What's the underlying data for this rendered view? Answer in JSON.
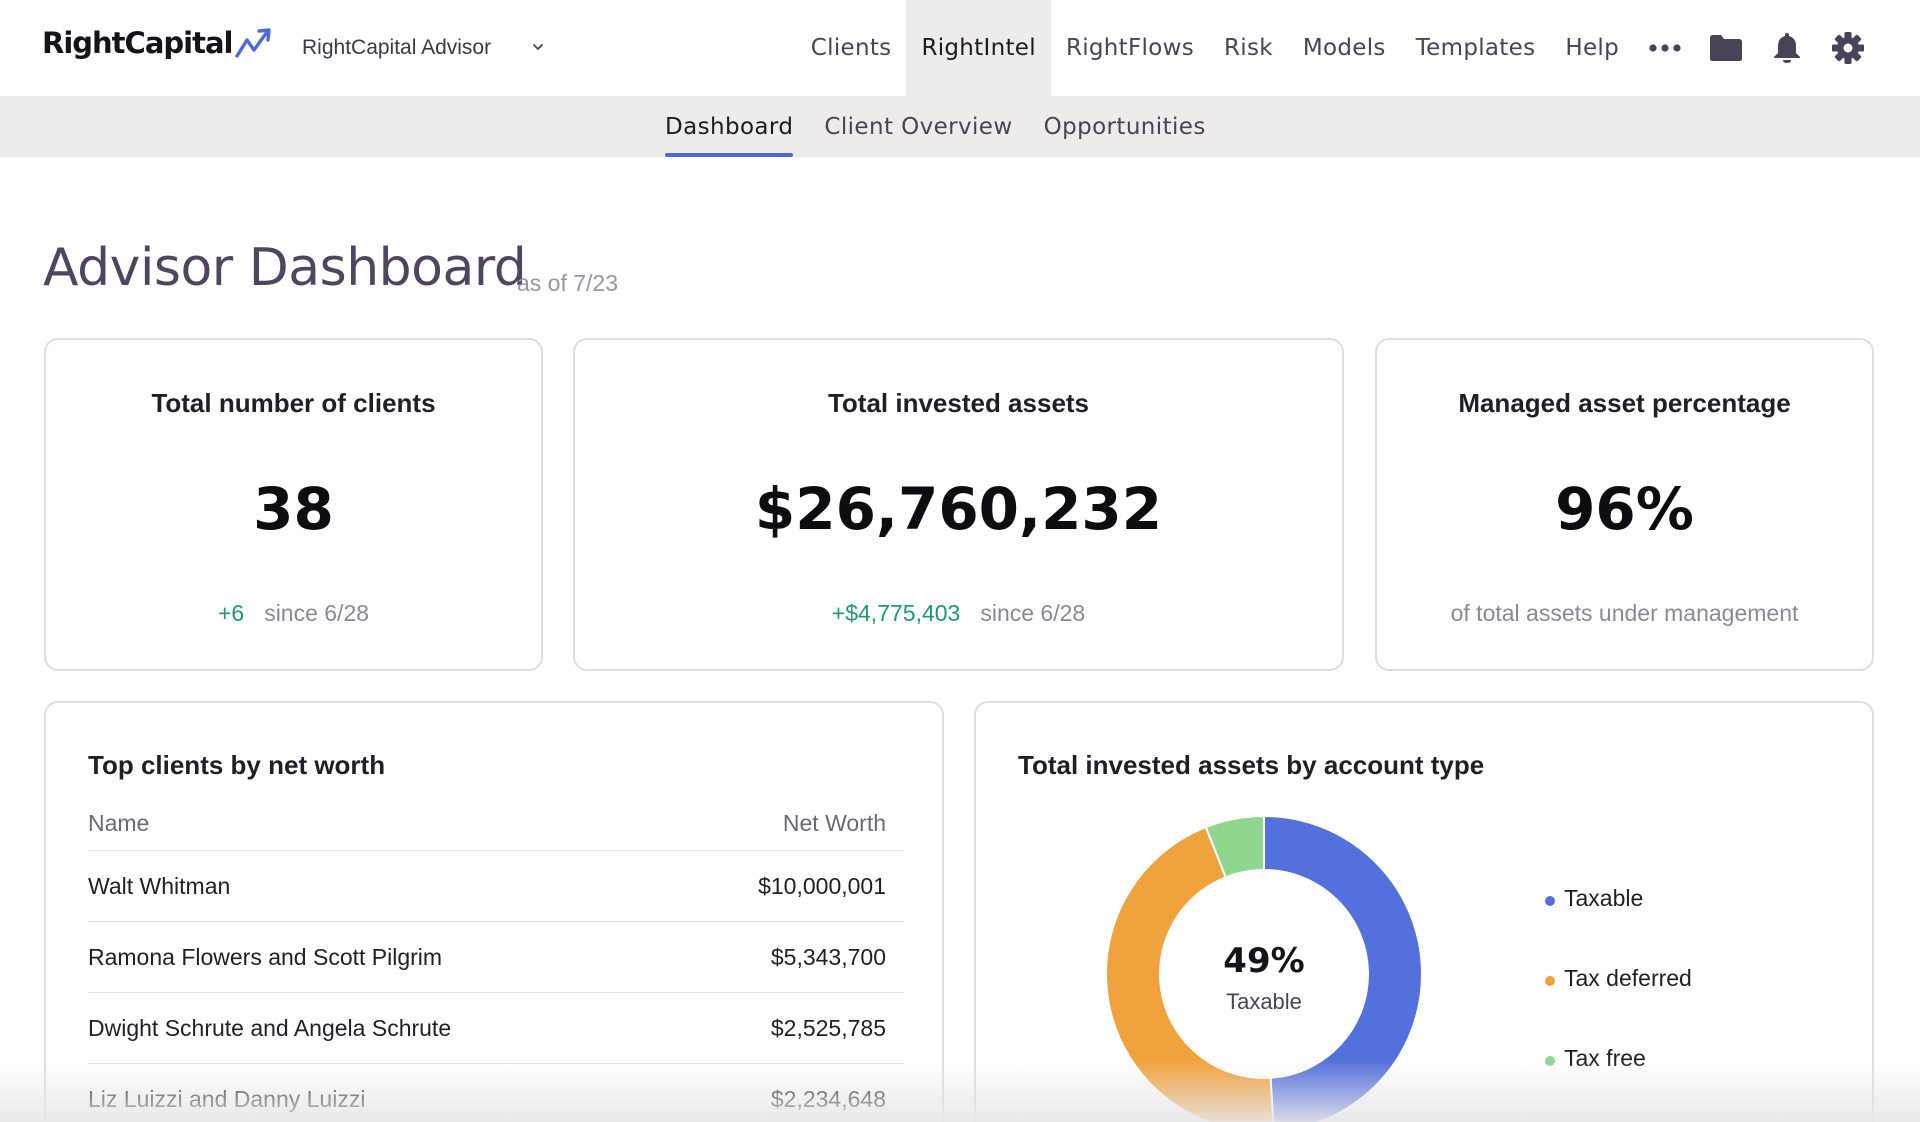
{
  "brand": {
    "logo_text": "RightCapital",
    "logo_icon": "trend-arrow-icon"
  },
  "advisor_select": {
    "value": "RightCapital Advisor",
    "icon": "chevron-down-icon"
  },
  "nav": {
    "items": [
      {
        "label": "Clients",
        "active": false
      },
      {
        "label": "RightIntel",
        "active": true
      },
      {
        "label": "RightFlows",
        "active": false
      },
      {
        "label": "Risk",
        "active": false
      },
      {
        "label": "Models",
        "active": false
      },
      {
        "label": "Templates",
        "active": false
      },
      {
        "label": "Help",
        "active": false
      }
    ],
    "icons": [
      "more-horizontal-icon",
      "folder-icon",
      "bell-icon",
      "gear-icon"
    ]
  },
  "subnav": {
    "tabs": [
      {
        "label": "Dashboard",
        "active": true
      },
      {
        "label": "Client Overview",
        "active": false
      },
      {
        "label": "Opportunities",
        "active": false
      }
    ]
  },
  "page": {
    "title": "Advisor Dashboard",
    "as_of": "as of 7/23"
  },
  "stats": [
    {
      "title": "Total number of clients",
      "value": "38",
      "delta": "+6",
      "since": "since 6/28"
    },
    {
      "title": "Total invested assets",
      "value": "$26,760,232",
      "delta": "+$4,775,403",
      "since": "since 6/28"
    },
    {
      "title": "Managed asset percentage",
      "value": "96%",
      "footnote": "of total assets under management"
    }
  ],
  "top_clients": {
    "title": "Top clients by net worth",
    "columns": [
      "Name",
      "Net Worth"
    ],
    "rows": [
      {
        "name": "Walt Whitman",
        "net_worth": "$10,000,001"
      },
      {
        "name": "Ramona Flowers and Scott Pilgrim",
        "net_worth": "$5,343,700"
      },
      {
        "name": "Dwight Schrute and Angela Schrute",
        "net_worth": "$2,525,785"
      },
      {
        "name": "Liz Luizzi and Danny Luizzi",
        "net_worth": "$2,234,648"
      }
    ]
  },
  "chart_data": {
    "type": "pie",
    "title": "Total invested assets by account type",
    "categories": [
      "Taxable",
      "Tax deferred",
      "Tax free"
    ],
    "values": [
      49,
      45,
      6
    ],
    "colors": [
      "#5470dc",
      "#f0a23c",
      "#8fd68e"
    ],
    "center_value": "49%",
    "center_label": "Taxable",
    "legend": "right"
  },
  "colors": {
    "accent": "#4d6bd8",
    "positive": "#1e9a6e",
    "nav_active_bg": "#eeecea"
  }
}
